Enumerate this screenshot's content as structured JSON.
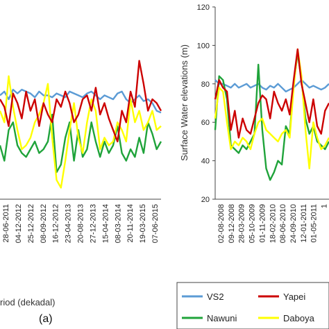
{
  "colors": {
    "VS2": "#5b9bd5",
    "Yapei": "#cc0000",
    "Nawuni": "#1fa33a",
    "Daboya": "#ffff00"
  },
  "chart_data": [
    {
      "type": "line",
      "panel_label": "(a)",
      "xlabel": "riod (dekadal)",
      "ylabel": "",
      "x_ticks": [
        "28-06-2011",
        "04-12-2012",
        "25-12-2012",
        "08-09-2012",
        "16-12-2012",
        "23-04-2013",
        "20-08-2013",
        "27-12-2013",
        "15-04-2014",
        "08-03-2014",
        "20-11-2014",
        "19-03-2015",
        "07-06-2015"
      ],
      "ylim": [
        20,
        120
      ],
      "series": [
        {
          "name": "VS2",
          "values": [
            74,
            76,
            72,
            77,
            75,
            77,
            76,
            75,
            73,
            76,
            74,
            74,
            73,
            75,
            74,
            73,
            76,
            75,
            74,
            73,
            75,
            76,
            74,
            72,
            74,
            73,
            72,
            75,
            76,
            72,
            70,
            72,
            74,
            71,
            72,
            70,
            66,
            65
          ]
        },
        {
          "name": "Yapei",
          "values": [
            72,
            68,
            58,
            75,
            70,
            62,
            76,
            66,
            72,
            58,
            70,
            64,
            60,
            72,
            68,
            76,
            70,
            60,
            64,
            72,
            74,
            66,
            78,
            64,
            70,
            62,
            56,
            50,
            66,
            60,
            76,
            68,
            92,
            80,
            66,
            72,
            70,
            66
          ]
        },
        {
          "name": "Nawuni",
          "values": [
            48,
            40,
            56,
            60,
            48,
            44,
            42,
            46,
            50,
            44,
            46,
            50,
            64,
            34,
            38,
            52,
            60,
            40,
            56,
            42,
            46,
            60,
            50,
            42,
            50,
            44,
            48,
            58,
            44,
            40,
            46,
            42,
            52,
            44,
            60,
            54,
            46,
            50
          ]
        },
        {
          "name": "Daboya",
          "values": [
            66,
            60,
            84,
            68,
            56,
            46,
            48,
            52,
            60,
            64,
            70,
            80,
            52,
            30,
            26,
            40,
            56,
            70,
            52,
            44,
            60,
            72,
            66,
            46,
            52,
            48,
            50,
            60,
            56,
            50,
            72,
            60,
            66,
            56,
            60,
            66,
            56,
            58
          ]
        }
      ]
    },
    {
      "type": "line",
      "panel_label": "",
      "xlabel": "",
      "ylabel": "Surface Water elevations (m)",
      "x_ticks": [
        "02-08-2008",
        "09-12-2008",
        "28-03-2009",
        "05-10-2009",
        "01-11-2009",
        "18-02-2010",
        "08-06-2010",
        "24-09-2010",
        "12-01-2011",
        "01-05-2011",
        "1"
      ],
      "y_ticks": [
        20,
        40,
        60,
        80,
        100,
        120
      ],
      "ylim": [
        20,
        120
      ],
      "series": [
        {
          "name": "VS2",
          "values": [
            82,
            80,
            80,
            79,
            78,
            80,
            78,
            79,
            80,
            78,
            79,
            80,
            78,
            77,
            79,
            78,
            80,
            78,
            76,
            77,
            78,
            80,
            82,
            80,
            78,
            79,
            78,
            77,
            78,
            80
          ]
        },
        {
          "name": "Yapei",
          "values": [
            72,
            82,
            78,
            76,
            56,
            66,
            52,
            62,
            56,
            54,
            62,
            70,
            74,
            72,
            62,
            76,
            70,
            66,
            72,
            64,
            82,
            98,
            80,
            70,
            60,
            72,
            58,
            54,
            66,
            70
          ]
        },
        {
          "name": "Nawuni",
          "values": [
            56,
            84,
            82,
            72,
            48,
            46,
            44,
            48,
            46,
            50,
            54,
            90,
            56,
            36,
            30,
            34,
            40,
            38,
            58,
            54,
            80,
            96,
            82,
            62,
            54,
            58,
            50,
            48,
            46,
            50
          ]
        },
        {
          "name": "Daboya",
          "values": [
            62,
            78,
            76,
            60,
            46,
            50,
            48,
            52,
            50,
            46,
            54,
            60,
            62,
            56,
            54,
            52,
            50,
            54,
            56,
            52,
            78,
            98,
            84,
            56,
            36,
            60,
            52,
            46,
            48,
            52
          ]
        }
      ]
    }
  ],
  "legend": {
    "entries": [
      {
        "name": "VS2"
      },
      {
        "name": "Yapei"
      },
      {
        "name": "Nawuni"
      },
      {
        "name": "Daboya"
      }
    ]
  }
}
